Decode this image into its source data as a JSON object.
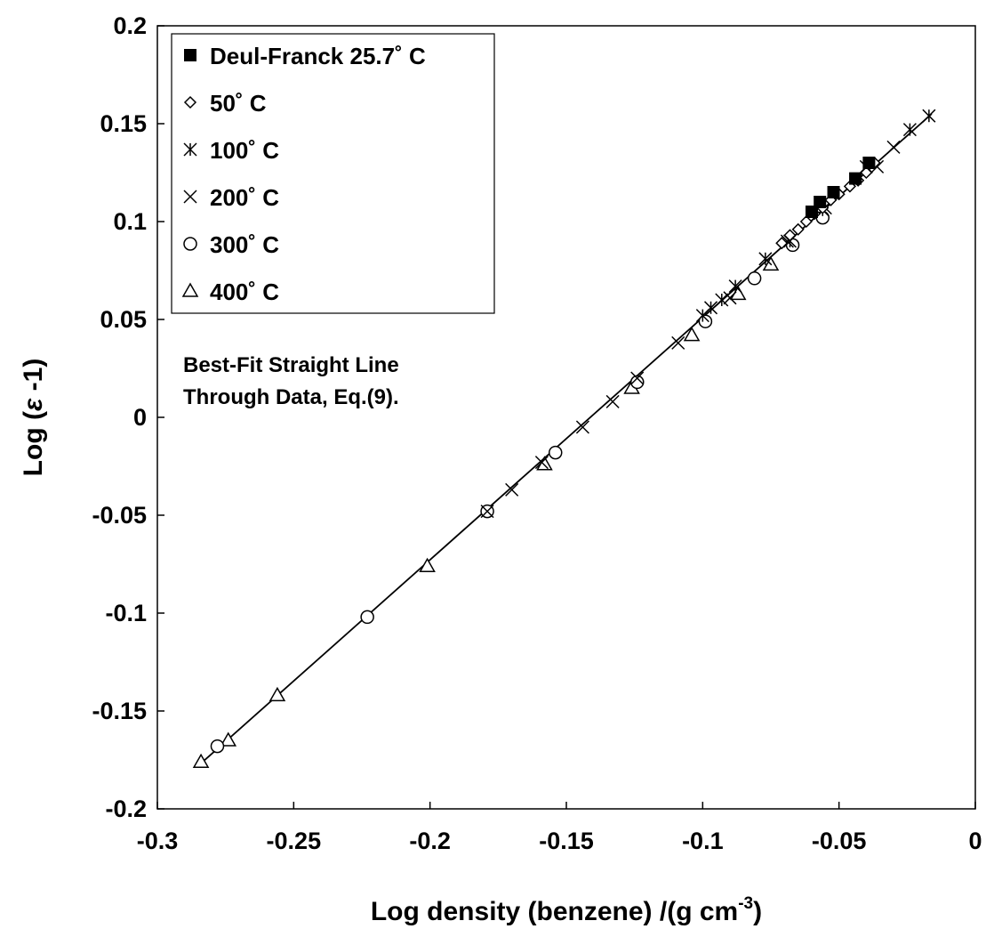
{
  "chart_data": {
    "type": "scatter",
    "xlabel": "Log density (benzene) /(g cm",
    "xlabel_sup": "-3",
    "xlabel_tail": ")",
    "ylabel_prefix": "Log (",
    "ylabel_symbol": "ε",
    "ylabel_suffix": " -1)",
    "xlim": [
      -0.3,
      0
    ],
    "ylim": [
      -0.2,
      0.2
    ],
    "x_ticks": [
      -0.3,
      -0.25,
      -0.2,
      -0.15,
      -0.1,
      -0.05,
      0
    ],
    "x_tick_labels": [
      "-0.3",
      "-0.25",
      "-0.2",
      "-0.15",
      "-0.1",
      "-0.05",
      "0"
    ],
    "y_ticks": [
      -0.2,
      -0.15,
      -0.1,
      -0.05,
      0,
      0.05,
      0.1,
      0.15,
      0.2
    ],
    "y_tick_labels": [
      "-0.2",
      "-0.15",
      "-0.1",
      "-0.05",
      "0",
      "0.05",
      "0.1",
      "0.15",
      "0.2"
    ],
    "grid": false,
    "legend_position": "top-left",
    "annotation_lines": [
      "Best-Fit Straight Line",
      "Through Data, Eq.(9)."
    ],
    "fit_line": {
      "x": [
        -0.285,
        -0.016
      ],
      "y": [
        -0.178,
        0.155
      ]
    },
    "series": [
      {
        "name": "Deul-Franck 25.7˚ C",
        "marker": "filled-square",
        "points": [
          [
            -0.06,
            0.105
          ],
          [
            -0.057,
            0.11
          ],
          [
            -0.052,
            0.115
          ],
          [
            -0.044,
            0.122
          ],
          [
            -0.039,
            0.13
          ]
        ]
      },
      {
        "name": "50˚ C",
        "marker": "diamond",
        "points": [
          [
            -0.071,
            0.089
          ],
          [
            -0.068,
            0.093
          ],
          [
            -0.065,
            0.096
          ],
          [
            -0.062,
            0.1
          ],
          [
            -0.059,
            0.104
          ],
          [
            -0.056,
            0.107
          ],
          [
            -0.053,
            0.111
          ],
          [
            -0.05,
            0.114
          ],
          [
            -0.046,
            0.118
          ],
          [
            -0.043,
            0.121
          ],
          [
            -0.04,
            0.125
          ],
          [
            -0.037,
            0.13
          ]
        ]
      },
      {
        "name": "100˚ C",
        "marker": "asterisk",
        "points": [
          [
            -0.1,
            0.052
          ],
          [
            -0.097,
            0.056
          ],
          [
            -0.093,
            0.06
          ],
          [
            -0.088,
            0.067
          ],
          [
            -0.077,
            0.081
          ],
          [
            -0.068,
            0.09
          ],
          [
            -0.056,
            0.106
          ],
          [
            -0.04,
            0.128
          ],
          [
            -0.024,
            0.147
          ],
          [
            -0.017,
            0.154
          ]
        ]
      },
      {
        "name": "200˚ C",
        "marker": "x",
        "points": [
          [
            -0.179,
            -0.048
          ],
          [
            -0.17,
            -0.037
          ],
          [
            -0.159,
            -0.023
          ],
          [
            -0.144,
            -0.005
          ],
          [
            -0.133,
            0.008
          ],
          [
            -0.124,
            0.02
          ],
          [
            -0.109,
            0.038
          ],
          [
            -0.09,
            0.061
          ],
          [
            -0.069,
            0.09
          ],
          [
            -0.055,
            0.107
          ],
          [
            -0.036,
            0.128
          ],
          [
            -0.03,
            0.138
          ]
        ]
      },
      {
        "name": "300˚ C",
        "marker": "circle",
        "points": [
          [
            -0.278,
            -0.168
          ],
          [
            -0.223,
            -0.102
          ],
          [
            -0.179,
            -0.048
          ],
          [
            -0.154,
            -0.018
          ],
          [
            -0.124,
            0.018
          ],
          [
            -0.099,
            0.049
          ],
          [
            -0.081,
            0.071
          ],
          [
            -0.067,
            0.088
          ],
          [
            -0.056,
            0.102
          ]
        ]
      },
      {
        "name": "400˚ C",
        "marker": "triangle",
        "points": [
          [
            -0.284,
            -0.176
          ],
          [
            -0.274,
            -0.165
          ],
          [
            -0.256,
            -0.142
          ],
          [
            -0.201,
            -0.076
          ],
          [
            -0.158,
            -0.024
          ],
          [
            -0.126,
            0.015
          ],
          [
            -0.104,
            0.042
          ],
          [
            -0.087,
            0.063
          ],
          [
            -0.075,
            0.078
          ]
        ]
      }
    ]
  }
}
